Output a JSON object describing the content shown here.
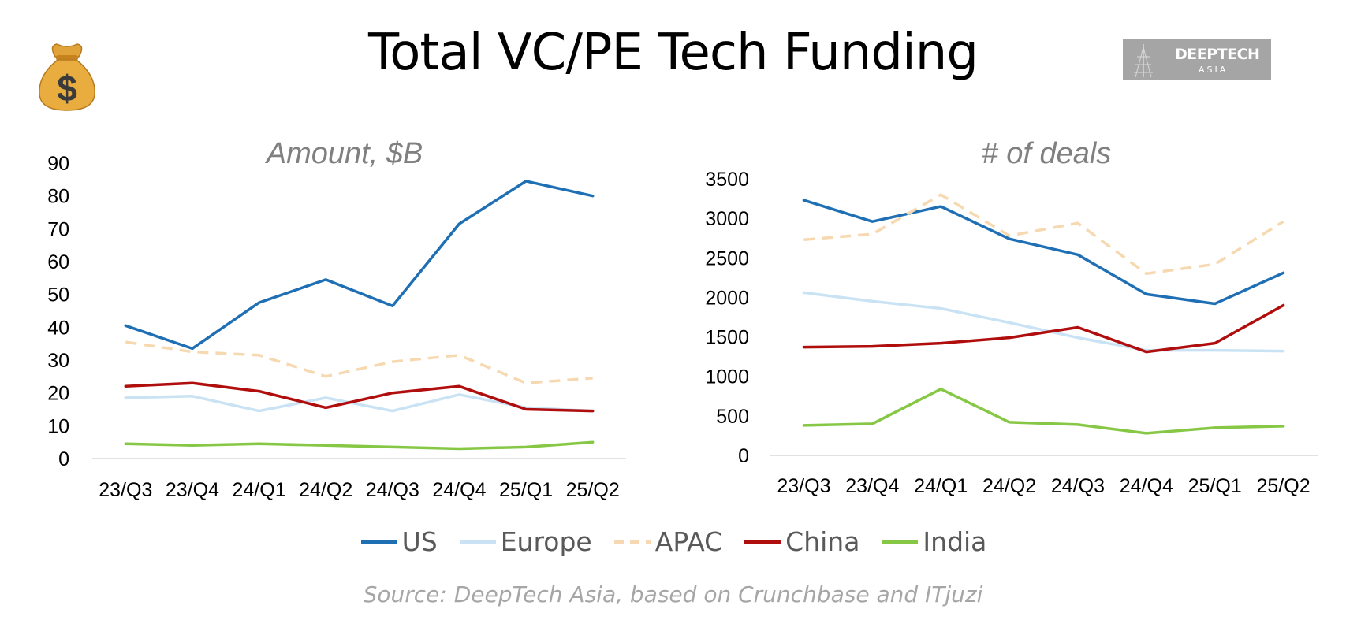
{
  "page": {
    "title": "Total VC/PE Tech Funding",
    "source": "Source: DeepTech Asia, based on Crunchbase and ITjuzi",
    "logo": {
      "name": "DEEPTECH",
      "sub": "ASIA"
    },
    "icons": {
      "left": "money-bag-icon"
    }
  },
  "legend": [
    {
      "name": "US",
      "color": "#1f6fb5",
      "dash": false
    },
    {
      "name": "Europe",
      "color": "#c9e3f4",
      "dash": false
    },
    {
      "name": "APAC",
      "color": "#f7d9b1",
      "dash": true
    },
    {
      "name": "China",
      "color": "#b00d0d",
      "dash": false
    },
    {
      "name": "India",
      "color": "#86c845",
      "dash": false
    }
  ],
  "chart_data": [
    {
      "type": "line",
      "title": "Amount, $B",
      "categories": [
        "23/Q3",
        "23/Q4",
        "24/Q1",
        "24/Q2",
        "24/Q3",
        "24/Q4",
        "25/Q1",
        "25/Q2"
      ],
      "ylim": [
        0,
        90
      ],
      "yticks": [
        0,
        10,
        20,
        30,
        40,
        50,
        60,
        70,
        80,
        90
      ],
      "series": [
        {
          "name": "US",
          "values": [
            40.5,
            33.5,
            47.5,
            54.5,
            46.5,
            71.5,
            84.5,
            80
          ]
        },
        {
          "name": "Europe",
          "values": [
            18.5,
            19,
            14.5,
            18.5,
            14.5,
            19.5,
            15.5,
            14.5
          ]
        },
        {
          "name": "APAC",
          "values": [
            35.5,
            32.5,
            31.5,
            25,
            29.5,
            31.5,
            23,
            24.5
          ]
        },
        {
          "name": "China",
          "values": [
            22,
            23,
            20.5,
            15.5,
            20,
            22,
            15,
            14.5
          ]
        },
        {
          "name": "India",
          "values": [
            4.5,
            4,
            4.5,
            4,
            3.5,
            3,
            3.5,
            5
          ]
        }
      ]
    },
    {
      "type": "line",
      "title": "# of deals",
      "categories": [
        "23/Q3",
        "23/Q4",
        "24/Q1",
        "24/Q2",
        "24/Q3",
        "24/Q4",
        "25/Q1",
        "25/Q2"
      ],
      "ylim": [
        0,
        3500
      ],
      "yticks": [
        0,
        500,
        1000,
        1500,
        2000,
        2500,
        3000,
        3500
      ],
      "series": [
        {
          "name": "US",
          "values": [
            3230,
            2960,
            3150,
            2740,
            2540,
            2040,
            1920,
            2310
          ]
        },
        {
          "name": "Europe",
          "values": [
            2060,
            1950,
            1860,
            1680,
            1490,
            1330,
            1330,
            1320
          ]
        },
        {
          "name": "APAC",
          "values": [
            2730,
            2800,
            3300,
            2780,
            2940,
            2300,
            2420,
            2960
          ]
        },
        {
          "name": "China",
          "values": [
            1370,
            1380,
            1420,
            1490,
            1620,
            1310,
            1420,
            1900
          ]
        },
        {
          "name": "India",
          "values": [
            380,
            400,
            840,
            420,
            390,
            280,
            350,
            370
          ]
        }
      ]
    }
  ]
}
